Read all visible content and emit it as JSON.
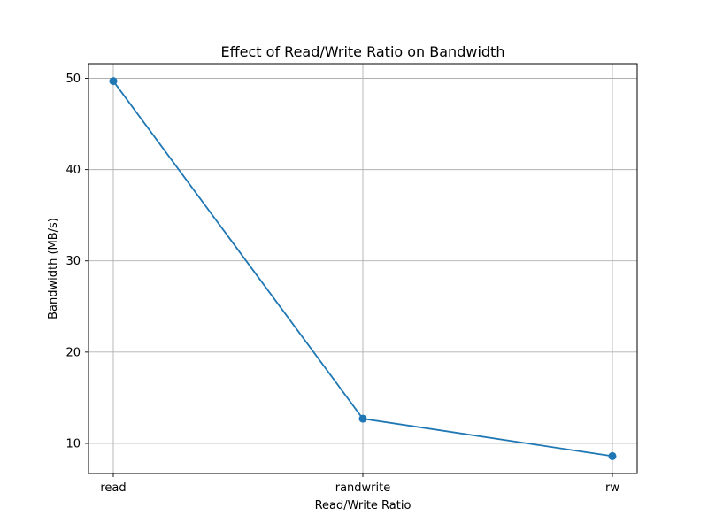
{
  "chart_data": {
    "type": "line",
    "title": "Effect of Read/Write Ratio on Bandwidth",
    "xlabel": "Read/Write Ratio",
    "ylabel": "Bandwidth (MB/s)",
    "categories": [
      "read",
      "randwrite",
      "rw"
    ],
    "series": [
      {
        "values": [
          49.7,
          12.7,
          8.6
        ],
        "color": "#1f77b4",
        "marker": "circle"
      }
    ],
    "ylim": [
      6.7,
      51.6
    ],
    "yticks": [
      10,
      20,
      30,
      40,
      50
    ],
    "grid": true
  }
}
